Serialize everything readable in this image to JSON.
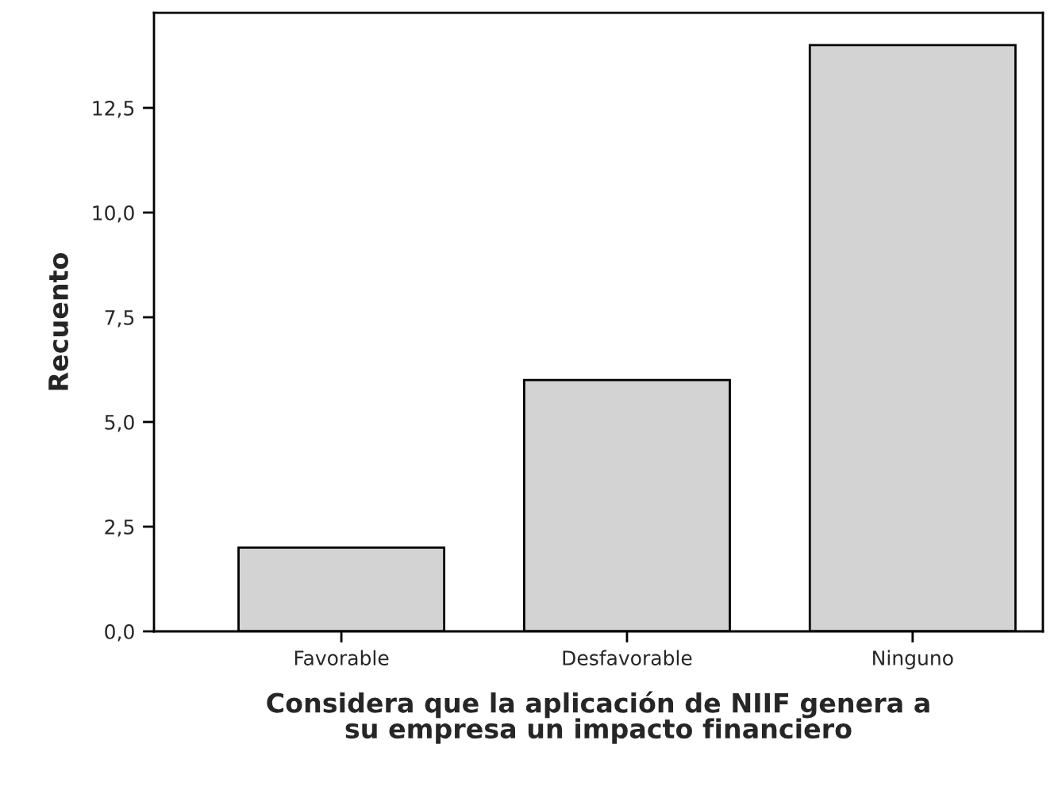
{
  "chart_data": {
    "type": "bar",
    "categories": [
      "Favorable",
      "Desfavorable",
      "Ninguno"
    ],
    "values": [
      2,
      6,
      14
    ],
    "color": "#d3d3d3",
    "xlabel": "Considera que la aplicación de NIIF genera a\nsu empresa un impacto financiero",
    "ylabel": "Recuento",
    "ylim": [
      0,
      14.77
    ],
    "yticks": [
      {
        "value": 0,
        "label": "0,0"
      },
      {
        "value": 2.5,
        "label": "2,5"
      },
      {
        "value": 5,
        "label": "5,0"
      },
      {
        "value": 7.5,
        "label": "7,5"
      },
      {
        "value": 10,
        "label": "10,0"
      },
      {
        "value": 12.5,
        "label": "12,5"
      }
    ],
    "grid": false
  }
}
